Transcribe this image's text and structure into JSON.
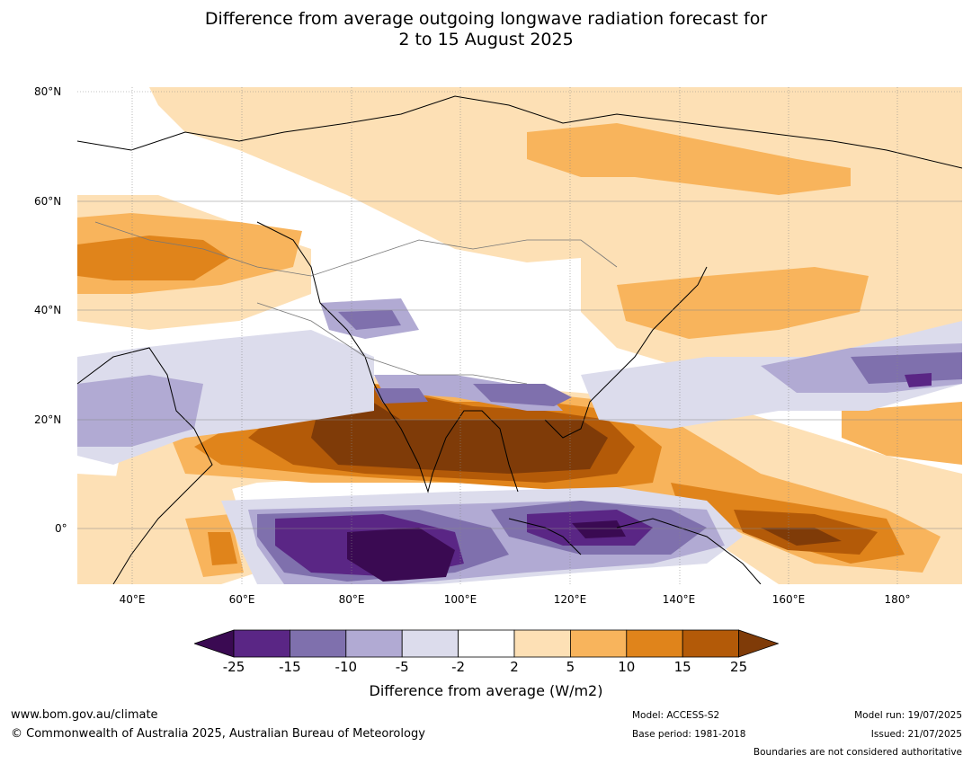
{
  "title_line1": "Difference from average outgoing longwave radiation forecast for",
  "title_line2": "2 to 15 August 2025",
  "lat_labels": [
    "80°N",
    "60°N",
    "40°N",
    "20°N",
    "0°"
  ],
  "lon_labels": [
    "40°E",
    "60°E",
    "80°E",
    "100°E",
    "120°E",
    "140°E",
    "160°E",
    "180°"
  ],
  "colorbar": {
    "ticks": [
      "-25",
      "-15",
      "-10",
      "-5",
      "-2",
      "2",
      "5",
      "10",
      "15",
      "25"
    ],
    "colors": [
      "#3a0a52",
      "#5a2685",
      "#7f70ad",
      "#b1aad3",
      "#dcdcec",
      "#ffffff",
      "#fde0b5",
      "#f8b45c",
      "#e0841b",
      "#b35a08",
      "#7f3b08"
    ],
    "label": "Difference from average (W/m2)"
  },
  "map": {
    "lat_range": [
      -10,
      81
    ],
    "lon_range": [
      30,
      191
    ],
    "grid": "dotted lon lines, solid lat lines"
  },
  "footer": {
    "website": "www.bom.gov.au/climate",
    "copyright": "© Commonwealth of Australia 2025, Australian Bureau of Meteorology",
    "model": "Model: ACCESS-S2",
    "base_period": "Base period: 1981-2018",
    "model_run": "Model run: 19/07/2025",
    "issued": "Issued: 21/07/2025",
    "disclaimer": "Boundaries are not considered authoritative"
  }
}
